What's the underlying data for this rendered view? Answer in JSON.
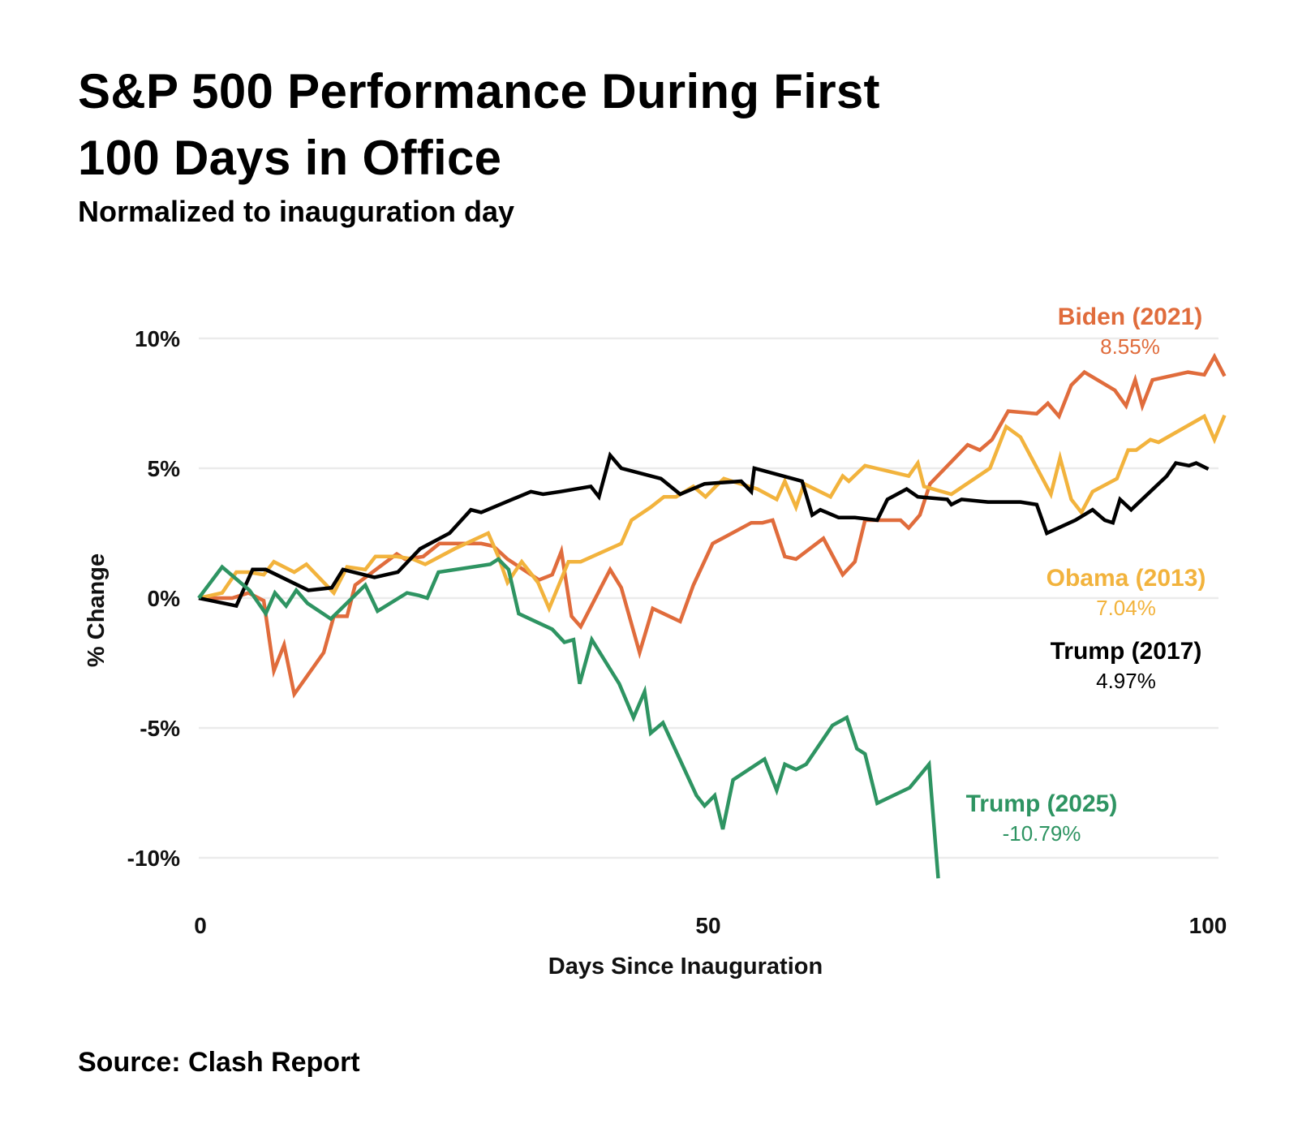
{
  "header": {
    "title_line1": "S&P 500 Performance During First",
    "title_line2": "100 Days in Office",
    "subtitle": "Normalized to inauguration day"
  },
  "footer": {
    "source": "Source: Clash Report"
  },
  "chart_data": {
    "type": "line",
    "title": "S&P 500 Performance During First 100 Days in Office",
    "subtitle": "Normalized to inauguration day",
    "xlabel": "Days Since Inauguration",
    "ylabel": "% Change",
    "xlim": [
      0,
      101
    ],
    "ylim": [
      -11.5,
      11
    ],
    "x_ticks": [
      0,
      50,
      100
    ],
    "x_tick_labels": [
      "0",
      "50",
      "100"
    ],
    "y_ticks": [
      10,
      5,
      0,
      -5,
      -10
    ],
    "y_tick_labels": [
      "10%",
      "5%",
      "0%",
      "-5%",
      "-10%"
    ],
    "grid": "horizontal",
    "legend": "direct-labels-right",
    "series": [
      {
        "name": "Biden (2021)",
        "label_value": "8.55%",
        "color": "#e06c3c",
        "points": [
          [
            0,
            0
          ],
          [
            3.3,
            0.0
          ],
          [
            4.9,
            0.2
          ],
          [
            6.4,
            -0.1
          ],
          [
            7.4,
            -2.8
          ],
          [
            8.4,
            -1.8
          ],
          [
            9.4,
            -3.7
          ],
          [
            12.3,
            -2.1
          ],
          [
            13.3,
            -0.7
          ],
          [
            14.6,
            -0.7
          ],
          [
            15.4,
            0.5
          ],
          [
            19.5,
            1.7
          ],
          [
            20.3,
            1.5
          ],
          [
            22.1,
            1.6
          ],
          [
            23.7,
            2.1
          ],
          [
            27.8,
            2.1
          ],
          [
            29,
            2.0
          ],
          [
            30.4,
            1.5
          ],
          [
            33.5,
            0.7
          ],
          [
            34.8,
            0.9
          ],
          [
            35.7,
            1.8
          ],
          [
            36.7,
            -0.7
          ],
          [
            37.6,
            -1.1
          ],
          [
            40.5,
            1.1
          ],
          [
            41.6,
            0.4
          ],
          [
            43.4,
            -2.1
          ],
          [
            44.7,
            -0.4
          ],
          [
            47.4,
            -0.9
          ],
          [
            48.7,
            0.5
          ],
          [
            50.6,
            2.1
          ],
          [
            54.4,
            2.9
          ],
          [
            55.5,
            2.9
          ],
          [
            56.5,
            3.0
          ],
          [
            57.7,
            1.6
          ],
          [
            58.8,
            1.5
          ],
          [
            61.5,
            2.3
          ],
          [
            63.4,
            0.9
          ],
          [
            64.6,
            1.4
          ],
          [
            65.6,
            3.0
          ],
          [
            67.1,
            3.0
          ],
          [
            69.1,
            3.0
          ],
          [
            69.9,
            2.7
          ],
          [
            71,
            3.2
          ],
          [
            72,
            4.4
          ],
          [
            75.7,
            5.9
          ],
          [
            76.9,
            5.7
          ],
          [
            78.1,
            6.1
          ],
          [
            79.7,
            7.2
          ],
          [
            82.5,
            7.1
          ],
          [
            83.6,
            7.5
          ],
          [
            84.7,
            7.0
          ],
          [
            85.9,
            8.2
          ],
          [
            87.2,
            8.7
          ],
          [
            90.2,
            8.0
          ],
          [
            91.3,
            7.4
          ],
          [
            92.2,
            8.4
          ],
          [
            92.9,
            7.4
          ],
          [
            93.9,
            8.4
          ],
          [
            97.4,
            8.7
          ],
          [
            99,
            8.6
          ],
          [
            100,
            9.3
          ],
          [
            101,
            8.55
          ]
        ]
      },
      {
        "name": "Obama (2013)",
        "label_value": "7.04%",
        "color": "#f2b33d",
        "points": [
          [
            0,
            0
          ],
          [
            2.3,
            0.2
          ],
          [
            3.7,
            1.0
          ],
          [
            4.9,
            1.0
          ],
          [
            6.4,
            0.9
          ],
          [
            7.4,
            1.4
          ],
          [
            9.4,
            1.0
          ],
          [
            10.6,
            1.3
          ],
          [
            13.3,
            0.2
          ],
          [
            14.6,
            1.2
          ],
          [
            16.4,
            1.1
          ],
          [
            17.4,
            1.6
          ],
          [
            19.5,
            1.6
          ],
          [
            21.1,
            1.5
          ],
          [
            22.3,
            1.3
          ],
          [
            25.2,
            1.9
          ],
          [
            28.5,
            2.5
          ],
          [
            29.5,
            1.6
          ],
          [
            30.4,
            0.6
          ],
          [
            31.8,
            1.4
          ],
          [
            33.4,
            0.6
          ],
          [
            34.5,
            -0.4
          ],
          [
            36.4,
            1.4
          ],
          [
            37.6,
            1.4
          ],
          [
            41.6,
            2.1
          ],
          [
            42.6,
            3.0
          ],
          [
            44.5,
            3.5
          ],
          [
            45.8,
            3.9
          ],
          [
            47,
            3.9
          ],
          [
            48.7,
            4.3
          ],
          [
            49.9,
            3.9
          ],
          [
            50.9,
            4.3
          ],
          [
            51.7,
            4.6
          ],
          [
            52.5,
            4.5
          ],
          [
            55,
            4.2
          ],
          [
            56.9,
            3.8
          ],
          [
            57.7,
            4.5
          ],
          [
            58.8,
            3.5
          ],
          [
            59.6,
            4.4
          ],
          [
            62.2,
            3.9
          ],
          [
            63.4,
            4.7
          ],
          [
            64,
            4.5
          ],
          [
            65.6,
            5.1
          ],
          [
            69.9,
            4.7
          ],
          [
            70.8,
            5.2
          ],
          [
            71.4,
            4.3
          ],
          [
            74.1,
            4.0
          ],
          [
            77.9,
            5.0
          ],
          [
            79.5,
            6.6
          ],
          [
            80.9,
            6.2
          ],
          [
            83.9,
            4.0
          ],
          [
            84.8,
            5.4
          ],
          [
            85.9,
            3.8
          ],
          [
            86.9,
            3.3
          ],
          [
            88,
            4.1
          ],
          [
            90.4,
            4.6
          ],
          [
            91.5,
            5.7
          ],
          [
            92.3,
            5.7
          ],
          [
            93.7,
            6.1
          ],
          [
            94.5,
            6.0
          ],
          [
            99,
            7.0
          ],
          [
            100,
            6.1
          ],
          [
            101,
            7.04
          ]
        ]
      },
      {
        "name": "Trump (2017)",
        "label_value": "4.97%",
        "color": "#000000",
        "points": [
          [
            0,
            0
          ],
          [
            3.7,
            -0.3
          ],
          [
            5.3,
            1.1
          ],
          [
            6.6,
            1.1
          ],
          [
            10.8,
            0.3
          ],
          [
            13.1,
            0.4
          ],
          [
            14.2,
            1.1
          ],
          [
            17.3,
            0.8
          ],
          [
            19.6,
            1.0
          ],
          [
            21.8,
            1.9
          ],
          [
            24.7,
            2.5
          ],
          [
            26.8,
            3.4
          ],
          [
            27.8,
            3.3
          ],
          [
            32.7,
            4.1
          ],
          [
            33.9,
            4.0
          ],
          [
            35.6,
            4.1
          ],
          [
            38.6,
            4.3
          ],
          [
            39.4,
            3.9
          ],
          [
            40.5,
            5.5
          ],
          [
            41.6,
            5.0
          ],
          [
            45.5,
            4.6
          ],
          [
            47.4,
            4.0
          ],
          [
            49.8,
            4.4
          ],
          [
            53.4,
            4.5
          ],
          [
            54.4,
            4.1
          ],
          [
            54.7,
            5.0
          ],
          [
            59.4,
            4.5
          ],
          [
            60.4,
            3.2
          ],
          [
            61.2,
            3.4
          ],
          [
            63,
            3.1
          ],
          [
            64.6,
            3.1
          ],
          [
            66.8,
            3.0
          ],
          [
            67.8,
            3.8
          ],
          [
            69.7,
            4.2
          ],
          [
            70.8,
            3.9
          ],
          [
            73.7,
            3.8
          ],
          [
            74.1,
            3.6
          ],
          [
            75.1,
            3.8
          ],
          [
            77.7,
            3.7
          ],
          [
            80.9,
            3.7
          ],
          [
            82.5,
            3.6
          ],
          [
            83.5,
            2.5
          ],
          [
            86.3,
            3.0
          ],
          [
            88,
            3.4
          ],
          [
            89.2,
            3.0
          ],
          [
            90,
            2.9
          ],
          [
            90.7,
            3.8
          ],
          [
            91.8,
            3.4
          ],
          [
            95.3,
            4.7
          ],
          [
            96.2,
            5.2
          ],
          [
            97.5,
            5.1
          ],
          [
            98.2,
            5.2
          ],
          [
            99.4,
            4.97
          ]
        ]
      },
      {
        "name": "Trump (2025)",
        "label_value": "-10.79%",
        "color": "#2e9462",
        "points": [
          [
            0,
            0
          ],
          [
            2.3,
            1.2
          ],
          [
            5,
            0.3
          ],
          [
            6.6,
            -0.6
          ],
          [
            7.5,
            0.2
          ],
          [
            8.6,
            -0.3
          ],
          [
            9.6,
            0.3
          ],
          [
            10.7,
            -0.2
          ],
          [
            13,
            -0.8
          ],
          [
            16.4,
            0.5
          ],
          [
            17.6,
            -0.5
          ],
          [
            20.5,
            0.2
          ],
          [
            21.7,
            0.1
          ],
          [
            22.5,
            0.0
          ],
          [
            23.6,
            1.0
          ],
          [
            28.7,
            1.3
          ],
          [
            29.5,
            1.5
          ],
          [
            30.5,
            1.1
          ],
          [
            31.5,
            -0.6
          ],
          [
            34.8,
            -1.2
          ],
          [
            36,
            -1.7
          ],
          [
            36.9,
            -1.6
          ],
          [
            37.5,
            -3.3
          ],
          [
            38.7,
            -1.6
          ],
          [
            41.4,
            -3.3
          ],
          [
            42.8,
            -4.6
          ],
          [
            43.9,
            -3.6
          ],
          [
            44.5,
            -5.2
          ],
          [
            45.7,
            -4.8
          ],
          [
            49,
            -7.6
          ],
          [
            49.8,
            -8.0
          ],
          [
            50.8,
            -7.6
          ],
          [
            51.6,
            -8.9
          ],
          [
            52.6,
            -7.0
          ],
          [
            55.7,
            -6.2
          ],
          [
            56.9,
            -7.4
          ],
          [
            57.7,
            -6.4
          ],
          [
            58.8,
            -6.6
          ],
          [
            59.8,
            -6.4
          ],
          [
            62.4,
            -4.9
          ],
          [
            63.8,
            -4.6
          ],
          [
            64.8,
            -5.8
          ],
          [
            65.6,
            -6.0
          ],
          [
            66.8,
            -7.9
          ],
          [
            70,
            -7.3
          ],
          [
            71.9,
            -6.4
          ],
          [
            72.8,
            -10.79
          ]
        ]
      }
    ]
  }
}
